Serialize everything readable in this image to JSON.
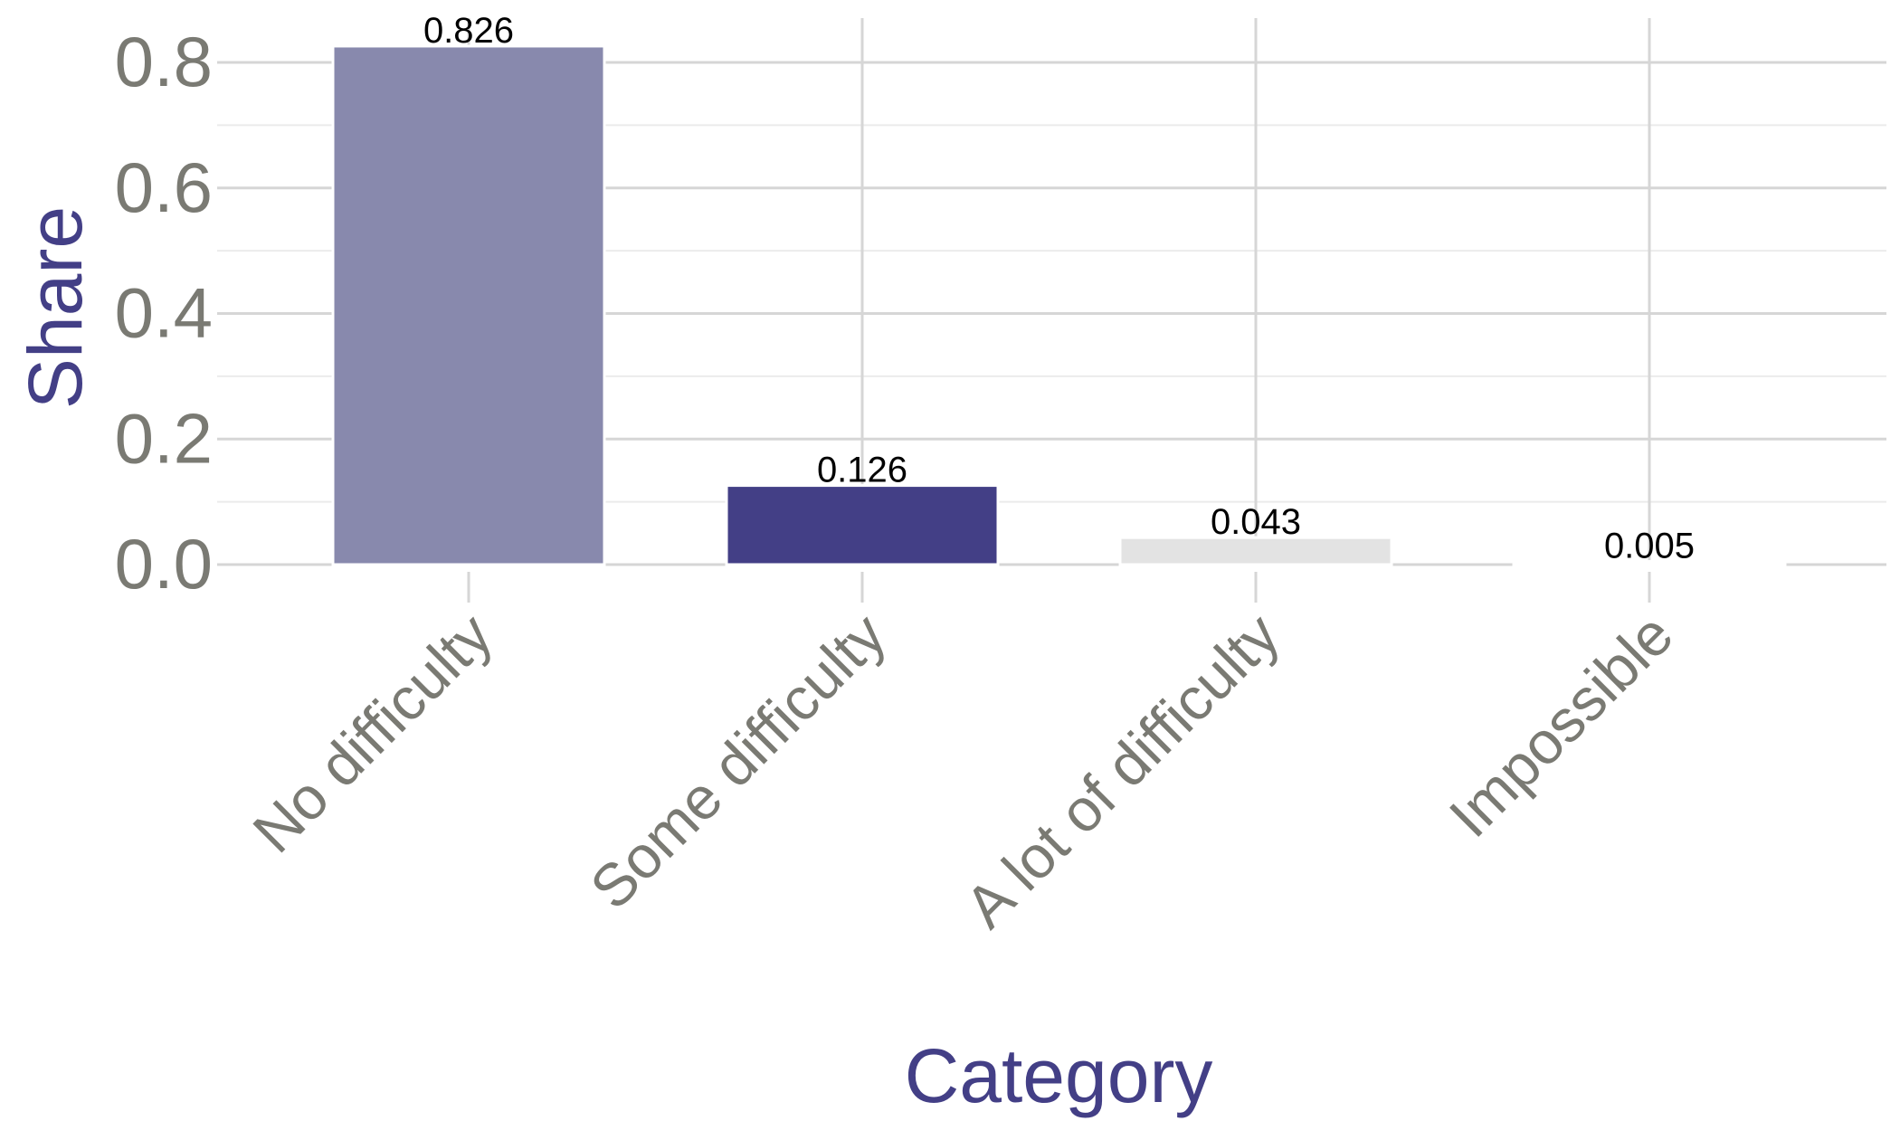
{
  "chart_data": {
    "type": "bar",
    "categories": [
      "No difficulty",
      "Some difficulty",
      "A lot of difficulty",
      "Impossible"
    ],
    "values": [
      0.826,
      0.126,
      0.043,
      0.005
    ],
    "value_labels": [
      "0.826",
      "0.126",
      "0.043",
      "0.005"
    ],
    "bar_colors": [
      "#8889ad",
      "#433f86",
      "#e3e3e3",
      "#ffffff"
    ],
    "xlabel": "Category",
    "ylabel": "Share",
    "ylim": [
      0,
      0.87
    ],
    "yticks": [
      0.0,
      0.2,
      0.4,
      0.6,
      0.8
    ],
    "ytick_labels": [
      "0.0",
      "0.2",
      "0.4",
      "0.6",
      "0.8"
    ],
    "grid": true,
    "legend": "none"
  }
}
